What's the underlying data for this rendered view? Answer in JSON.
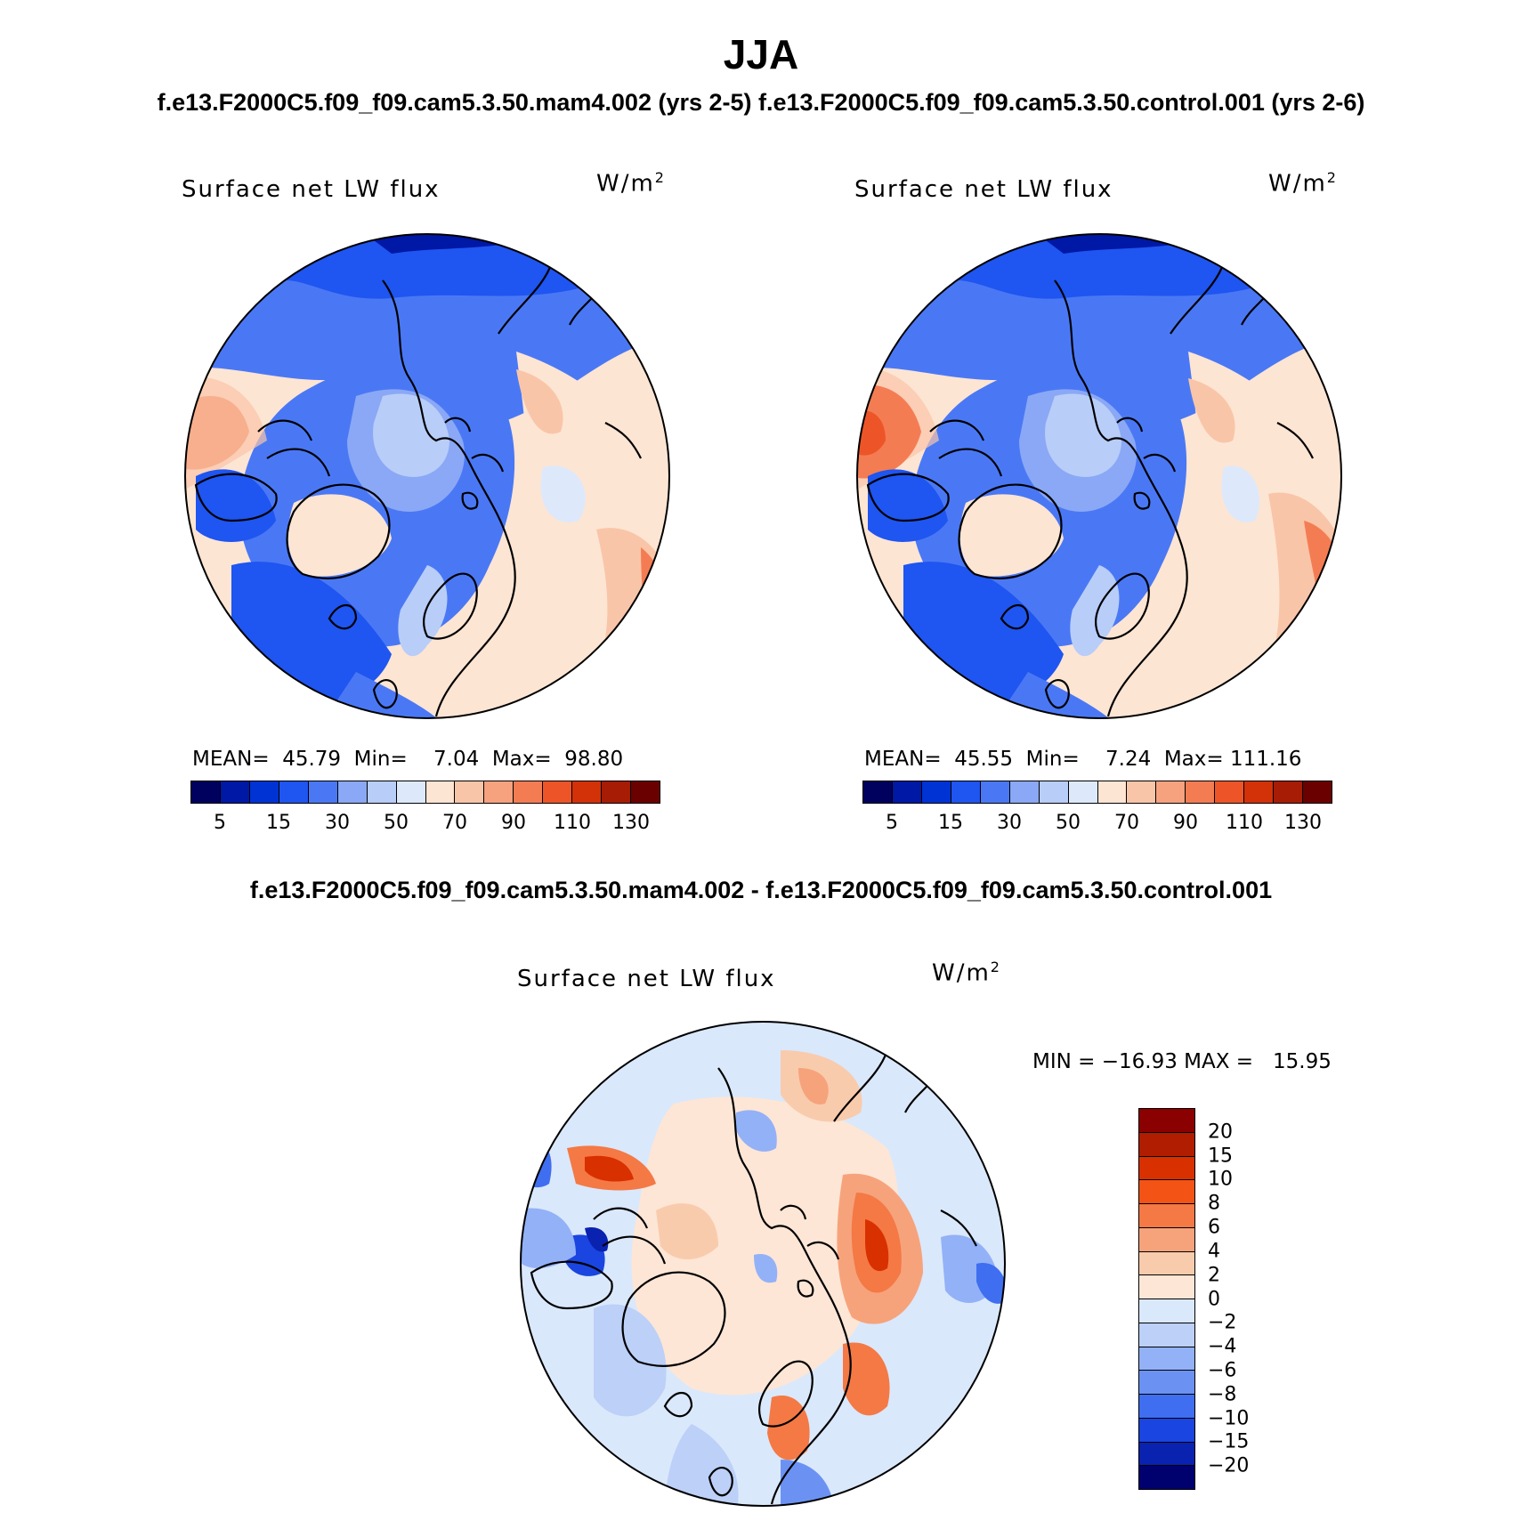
{
  "page": {
    "season": "JJA",
    "cases_title": "f.e13.F2000C5.f09_f09.cam5.3.50.mam4.002 (yrs 2-5) f.e13.F2000C5.f09_f09.cam5.3.50.control.001 (yrs 2-6)",
    "diff_title": "f.e13.F2000C5.f09_f09.cam5.3.50.mam4.002 - f.e13.F2000C5.f09_f09.cam5.3.50.control.001"
  },
  "panels": [
    {
      "variable": "Surface net LW flux",
      "units": "W/m",
      "units_sup": "2",
      "stats": "MEAN=  45.79  Min=    7.04  Max=  98.80",
      "colorbar_labels": [
        "5",
        "15",
        "30",
        "50",
        "70",
        "90",
        "110",
        "130"
      ]
    },
    {
      "variable": "Surface net LW flux",
      "units": "W/m",
      "units_sup": "2",
      "stats": "MEAN=  45.55  Min=    7.24  Max= 111.16",
      "colorbar_labels": [
        "5",
        "15",
        "30",
        "50",
        "70",
        "90",
        "110",
        "130"
      ]
    },
    {
      "variable": "Surface net LW flux",
      "units": "W/m",
      "units_sup": "2",
      "stats": "MIN = −16.93 MAX =   15.95",
      "colorbar_labels": [
        "20",
        "15",
        "10",
        "8",
        "6",
        "4",
        "2",
        "0",
        "−2",
        "−4",
        "−6",
        "−8",
        "−10",
        "−15",
        "−20"
      ]
    }
  ],
  "colors": {
    "abs_scale": [
      "#00005e",
      "#0018a6",
      "#0033d4",
      "#1f55f0",
      "#4a78f5",
      "#8aa8f5",
      "#b8cdf8",
      "#dde9fb",
      "#fde5d3",
      "#f9c5a8",
      "#f7a27f",
      "#f47c53",
      "#ed5528",
      "#d33208",
      "#a71c04",
      "#6b0000"
    ],
    "diff_scale": [
      "#8b0000",
      "#b01d00",
      "#d93000",
      "#f45316",
      "#f47945",
      "#f6a37c",
      "#f9cbad",
      "#fde6d6",
      "#dae8fb",
      "#bcd0f8",
      "#93b1f7",
      "#6b92f3",
      "#3f6ef0",
      "#1a45e0",
      "#0a22b0",
      "#00006f"
    ],
    "coastline": "#000000"
  }
}
